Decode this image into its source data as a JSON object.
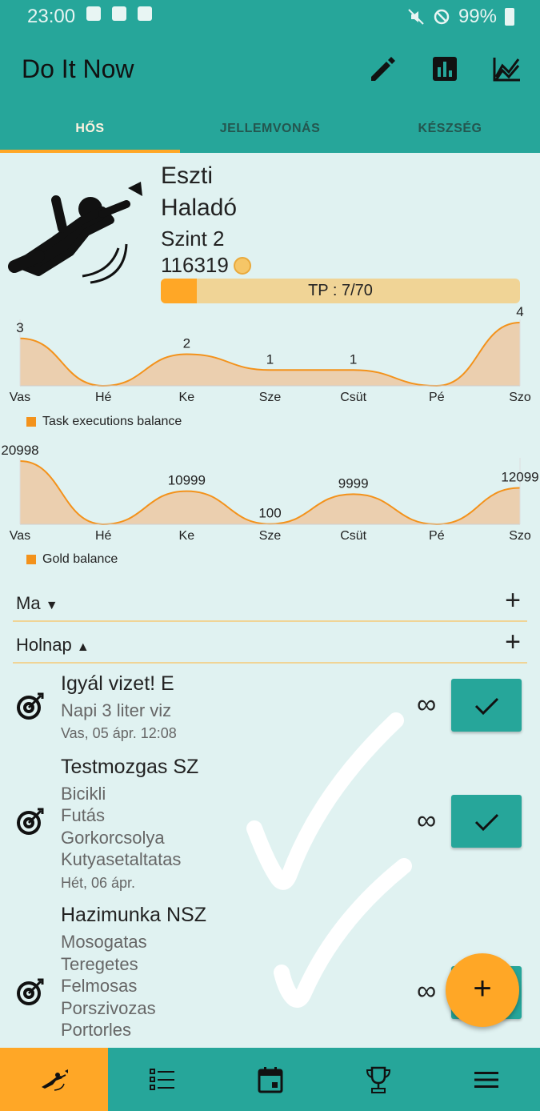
{
  "status": {
    "time": "23:00",
    "battery": "99%"
  },
  "app": {
    "title": "Do It Now"
  },
  "tabs": [
    {
      "label": "HŐS",
      "active": true
    },
    {
      "label": "JELLEMVONÁS",
      "active": false
    },
    {
      "label": "KÉSZSÉG",
      "active": false
    }
  ],
  "hero": {
    "name": "Eszti",
    "rank": "Haladó",
    "level": "Szint 2",
    "gold": "116319",
    "tp_text": "TP : 7/70",
    "tp_fraction": 0.1
  },
  "chart_data": [
    {
      "type": "area",
      "categories": [
        "Vas",
        "Hé",
        "Ke",
        "Sze",
        "Csüt",
        "Pé",
        "Szo"
      ],
      "series": [
        {
          "name": "Task executions balance",
          "values": [
            3,
            0,
            2,
            1,
            1,
            0,
            4
          ]
        }
      ],
      "data_labels": [
        "3",
        "",
        "2",
        "1",
        "1",
        "",
        "4"
      ],
      "legend": "bottom-left",
      "color": "#f3921b"
    },
    {
      "type": "area",
      "categories": [
        "Vas",
        "Hé",
        "Ke",
        "Sze",
        "Csüt",
        "Pé",
        "Szo"
      ],
      "series": [
        {
          "name": "Gold balance",
          "values": [
            20998,
            0,
            10999,
            100,
            9999,
            0,
            12099
          ]
        }
      ],
      "data_labels": [
        "20998",
        "",
        "10999",
        "100",
        "9999",
        "",
        "12099"
      ],
      "legend": "bottom-left",
      "color": "#f3921b"
    }
  ],
  "sections": [
    {
      "label": "Ma",
      "expanded": false,
      "plus": "+"
    },
    {
      "label": "Holnap",
      "expanded": true,
      "plus": "+"
    }
  ],
  "tasks": [
    {
      "title": "Igyál vizet! E",
      "subs": [
        "Napi 3 liter viz"
      ],
      "date": "Vas, 05 ápr. 12:08",
      "repeat": "∞"
    },
    {
      "title": "Testmozgas SZ",
      "subs": [
        "Bicikli",
        "Futás",
        "Gorkorcsolya",
        "Kutyasetaltatas"
      ],
      "date": "Hét, 06 ápr.",
      "repeat": "∞"
    },
    {
      "title": "Hazimunka NSZ",
      "subs": [
        "Mosogatas",
        "Teregetes",
        "Felmosas",
        "Porszivozas",
        "Portorles"
      ],
      "date": "",
      "repeat": "∞"
    }
  ],
  "fab": {
    "label": "+"
  },
  "colors": {
    "primary": "#26a69a",
    "accent": "#ffa726",
    "background": "#e0f2f1",
    "series": "#f3921b"
  },
  "nav": [
    "hero-icon",
    "list-icon",
    "calendar-icon",
    "trophy-icon",
    "menu-icon"
  ]
}
